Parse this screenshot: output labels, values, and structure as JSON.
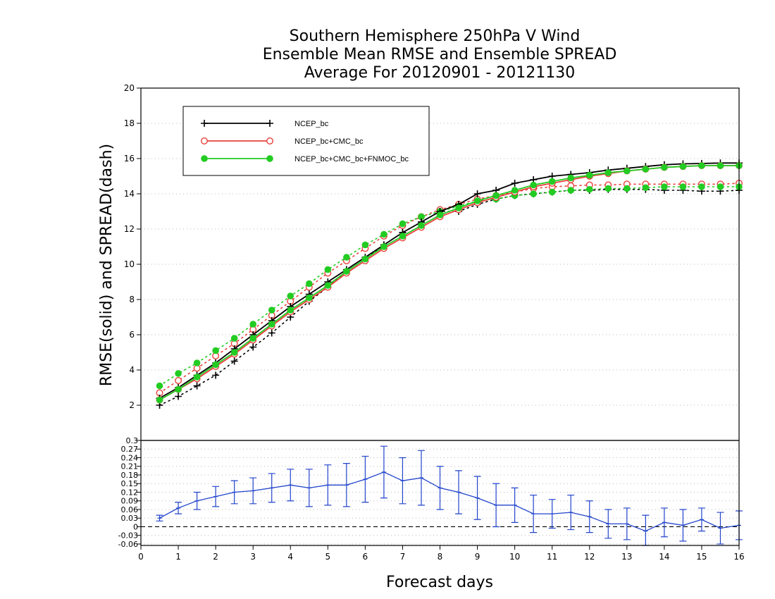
{
  "chart_data": [
    {
      "type": "line",
      "title": [
        "Southern Hemisphere 250hPa V Wind",
        "Ensemble Mean RMSE and Ensemble SPREAD",
        "Average For 20120901 - 20121130"
      ],
      "ylabel": "RMSE(solid) and SPREAD(dash)",
      "xlim": [
        0,
        16
      ],
      "ylim": [
        0,
        20
      ],
      "yticks": [
        2,
        4,
        6,
        8,
        10,
        12,
        14,
        16,
        18,
        20
      ],
      "grid": "horizontal dotted",
      "legend_position": "top-left",
      "x": [
        0.5,
        1,
        1.5,
        2,
        2.5,
        3,
        3.5,
        4,
        4.5,
        5,
        5.5,
        6,
        6.5,
        7,
        7.5,
        8,
        8.5,
        9,
        9.5,
        10,
        10.5,
        11,
        11.5,
        12,
        12.5,
        13,
        13.5,
        14,
        14.5,
        15,
        15.5,
        16
      ],
      "series": [
        {
          "name": "NCEP_bc",
          "metric": "RMSE",
          "style": "solid",
          "color": "#000000",
          "marker": "plus",
          "values": [
            2.4,
            3.0,
            3.7,
            4.4,
            5.2,
            6.0,
            6.8,
            7.6,
            8.3,
            9.0,
            9.7,
            10.4,
            11.1,
            11.8,
            12.4,
            13.0,
            13.4,
            14.0,
            14.2,
            14.6,
            14.8,
            15.0,
            15.1,
            15.2,
            15.35,
            15.45,
            15.55,
            15.65,
            15.7,
            15.72,
            15.75,
            15.75
          ]
        },
        {
          "name": "NCEP_bc+CMC_bc",
          "metric": "RMSE",
          "style": "solid",
          "color": "#e8413c",
          "marker": "open-circle",
          "values": [
            2.3,
            2.9,
            3.5,
            4.2,
            4.9,
            5.7,
            6.5,
            7.3,
            8.0,
            8.7,
            9.5,
            10.2,
            10.9,
            11.5,
            12.1,
            12.7,
            13.1,
            13.5,
            13.8,
            14.1,
            14.4,
            14.6,
            14.8,
            15.0,
            15.15,
            15.3,
            15.4,
            15.5,
            15.55,
            15.6,
            15.6,
            15.6
          ]
        },
        {
          "name": "NCEP_bc+CMC_bc+FNMOC_bc",
          "metric": "RMSE",
          "style": "solid",
          "color": "#22cc22",
          "marker": "filled-circle",
          "values": [
            2.3,
            2.9,
            3.6,
            4.3,
            5.0,
            5.8,
            6.6,
            7.4,
            8.1,
            8.8,
            9.6,
            10.3,
            11.0,
            11.6,
            12.2,
            12.8,
            13.2,
            13.6,
            13.9,
            14.2,
            14.5,
            14.7,
            14.9,
            15.05,
            15.2,
            15.3,
            15.4,
            15.5,
            15.55,
            15.6,
            15.6,
            15.6
          ]
        },
        {
          "name": "NCEP_bc",
          "metric": "SPREAD",
          "style": "dotted",
          "color": "#000000",
          "marker": "plus",
          "values": [
            2.0,
            2.5,
            3.1,
            3.7,
            4.5,
            5.3,
            6.1,
            7.0,
            7.9,
            8.7,
            9.6,
            10.3,
            11.1,
            11.8,
            12.4,
            13.0,
            13.0,
            13.4,
            13.7,
            13.9,
            14.0,
            14.1,
            14.2,
            14.2,
            14.25,
            14.25,
            14.25,
            14.2,
            14.2,
            14.15,
            14.15,
            14.2
          ]
        },
        {
          "name": "NCEP_bc+CMC_bc",
          "metric": "SPREAD",
          "style": "dotted",
          "color": "#e8413c",
          "marker": "open-circle",
          "values": [
            2.7,
            3.4,
            4.1,
            4.8,
            5.5,
            6.3,
            7.1,
            7.9,
            8.7,
            9.5,
            10.2,
            10.9,
            11.6,
            12.2,
            12.7,
            13.1,
            13.4,
            13.7,
            13.9,
            14.1,
            14.3,
            14.4,
            14.45,
            14.5,
            14.5,
            14.55,
            14.55,
            14.55,
            14.55,
            14.55,
            14.55,
            14.6
          ]
        },
        {
          "name": "NCEP_bc+CMC_bc+FNMOC_bc",
          "metric": "SPREAD",
          "style": "dotted",
          "color": "#22cc22",
          "marker": "filled-circle",
          "values": [
            3.1,
            3.8,
            4.4,
            5.1,
            5.8,
            6.6,
            7.4,
            8.2,
            8.9,
            9.7,
            10.4,
            11.1,
            11.7,
            12.3,
            12.7,
            13.0,
            13.3,
            13.6,
            13.7,
            13.9,
            14.0,
            14.1,
            14.2,
            14.25,
            14.3,
            14.3,
            14.35,
            14.4,
            14.4,
            14.4,
            14.4,
            14.4
          ]
        }
      ]
    },
    {
      "type": "errorbar",
      "xlabel": "Forecast days",
      "xlim": [
        0,
        16
      ],
      "xticks": [
        0,
        1,
        2,
        3,
        4,
        5,
        6,
        7,
        8,
        9,
        10,
        11,
        12,
        13,
        14,
        15,
        16
      ],
      "ylim": [
        -0.065,
        0.3
      ],
      "yticks": [
        -0.06,
        -0.03,
        0,
        0.03,
        0.06,
        0.09,
        0.12,
        0.15,
        0.18,
        0.21,
        0.24,
        0.27,
        0.3
      ],
      "ytick_labels": [
        "-0.06",
        "-0.03",
        "0",
        "0.03",
        "0.06",
        "0.09",
        "0.12",
        "0.15",
        "0.18",
        "0.21",
        "0.24",
        "0.27",
        "0.3"
      ],
      "zero_line": "dashed",
      "color": "#2244cc",
      "x": [
        0.5,
        1,
        1.5,
        2,
        2.5,
        3,
        3.5,
        4,
        4.5,
        5,
        5.5,
        6,
        6.5,
        7,
        7.5,
        8,
        8.5,
        9,
        9.5,
        10,
        10.5,
        11,
        11.5,
        12,
        12.5,
        13,
        13.5,
        14,
        14.5,
        15,
        15.5,
        16
      ],
      "values": [
        0.03,
        0.065,
        0.09,
        0.105,
        0.12,
        0.125,
        0.135,
        0.145,
        0.135,
        0.145,
        0.145,
        0.165,
        0.19,
        0.16,
        0.17,
        0.135,
        0.12,
        0.1,
        0.075,
        0.075,
        0.045,
        0.045,
        0.05,
        0.035,
        0.01,
        0.01,
        -0.015,
        0.015,
        0.005,
        0.025,
        -0.005,
        0.005
      ],
      "errors": [
        0.01,
        0.02,
        0.03,
        0.035,
        0.04,
        0.045,
        0.05,
        0.055,
        0.065,
        0.07,
        0.075,
        0.08,
        0.09,
        0.08,
        0.095,
        0.075,
        0.075,
        0.075,
        0.075,
        0.06,
        0.065,
        0.05,
        0.06,
        0.055,
        0.05,
        0.055,
        0.055,
        0.05,
        0.055,
        0.04,
        0.055,
        0.05
      ]
    }
  ]
}
